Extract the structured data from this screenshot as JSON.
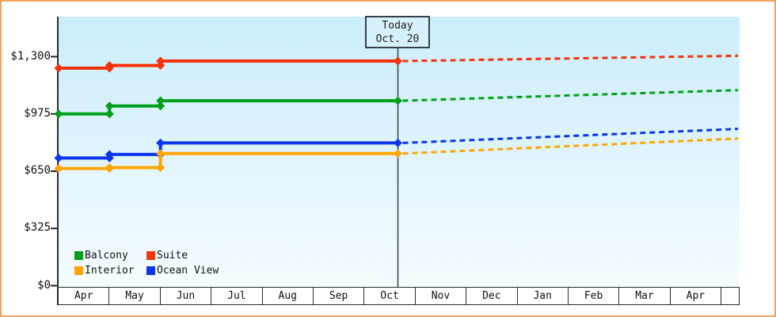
{
  "chart_data": {
    "type": "line",
    "title": "",
    "grid": false,
    "x_categories": [
      "Apr",
      "May",
      "Jun",
      "Jul",
      "Aug",
      "Sep",
      "Oct",
      "Nov",
      "Dec",
      "Jan",
      "Feb",
      "Mar",
      "Apr"
    ],
    "y_axis": {
      "tick_labels": [
        "$0",
        "$325",
        "$650",
        "$975",
        "$1,300"
      ],
      "tick_values": [
        0,
        325,
        650,
        975,
        1300
      ],
      "range": [
        0,
        1530
      ],
      "unit": "USD"
    },
    "today_marker": {
      "line1": "Today",
      "line2": "Oct. 20",
      "month": "Oct",
      "day": 20
    },
    "legend_position": "bottom-left-inside-plot",
    "series": [
      {
        "name": "Balcony",
        "color": "#00a01a",
        "points": [
          {
            "month": "Apr",
            "value": 975
          },
          {
            "month": "May",
            "value": 1020
          },
          {
            "month": "Jun",
            "value": 1050
          }
        ],
        "value_at_today": 1050,
        "projected_value_end": 1110,
        "projection_style": "dashed"
      },
      {
        "name": "Suite",
        "color": "#f53208",
        "points": [
          {
            "month": "Apr",
            "value": 1235
          },
          {
            "month": "May",
            "value": 1250
          },
          {
            "month": "Jun",
            "value": 1275
          }
        ],
        "value_at_today": 1275,
        "projected_value_end": 1305,
        "projection_style": "dashed"
      },
      {
        "name": "Interior",
        "color": "#ffa502",
        "points": [
          {
            "month": "Apr",
            "value": 665
          },
          {
            "month": "May",
            "value": 670
          },
          {
            "month": "Jun",
            "value": 750
          }
        ],
        "value_at_today": 750,
        "projected_value_end": 835,
        "projection_style": "dashed"
      },
      {
        "name": "Ocean View",
        "color": "#0c35f0",
        "points": [
          {
            "month": "Apr",
            "value": 725
          },
          {
            "month": "May",
            "value": 745
          },
          {
            "month": "Jun",
            "value": 810
          }
        ],
        "value_at_today": 810,
        "projected_value_end": 890,
        "projection_style": "dashed"
      }
    ],
    "legend": [
      {
        "label": "Balcony",
        "color": "#00a01a"
      },
      {
        "label": "Suite",
        "color": "#f53208"
      },
      {
        "label": "Interior",
        "color": "#ffa502"
      },
      {
        "label": "Ocean View",
        "color": "#0c35f0"
      }
    ],
    "frame_color": "#f1a45a"
  }
}
